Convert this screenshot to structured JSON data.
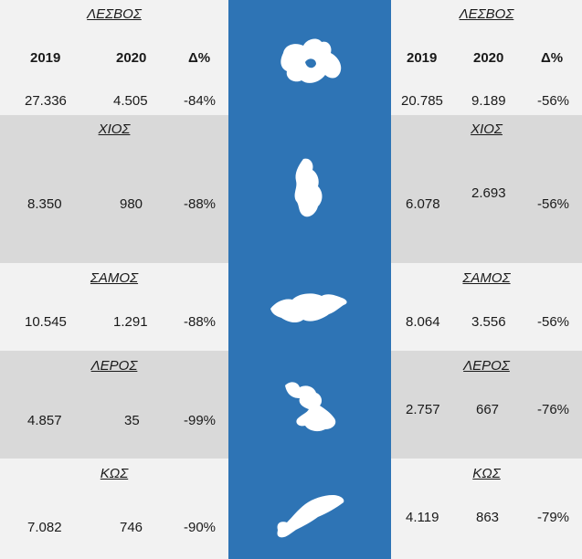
{
  "header": {
    "y2019": "2019",
    "y2020": "2020",
    "delta": "Δ%"
  },
  "left": [
    {
      "name": "ΛΕΣΒΟΣ",
      "v2019": "27.336",
      "v2020": "4.505",
      "delta": "-84%"
    },
    {
      "name": "ΧΙΟΣ",
      "v2019": "8.350",
      "v2020": "980",
      "delta": "-88%"
    },
    {
      "name": "ΣΑΜΟΣ",
      "v2019": "10.545",
      "v2020": "1.291",
      "delta": "-88%"
    },
    {
      "name": "ΛΕΡΟΣ",
      "v2019": "4.857",
      "v2020": "35",
      "delta": "-99%"
    },
    {
      "name": "ΚΩΣ",
      "v2019": "7.082",
      "v2020": "746",
      "delta": "-90%"
    }
  ],
  "right": [
    {
      "name": "ΛΕΣΒΟΣ",
      "v2019": "20.785",
      "v2020": "9.189",
      "delta": "-56%"
    },
    {
      "name": "ΧΙΟΣ",
      "v2019": "6.078",
      "v2020": "2.693",
      "delta": "-56%"
    },
    {
      "name": "ΣΑΜΟΣ",
      "v2019": "8.064",
      "v2020": "3.556",
      "delta": "-56%"
    },
    {
      "name": "ΛΕΡΟΣ",
      "v2019": "2.757",
      "v2020": "667",
      "delta": "-76%"
    },
    {
      "name": "ΚΩΣ",
      "v2019": "4.119",
      "v2020": "863",
      "delta": "-79%"
    }
  ],
  "colors": {
    "center_band": "#2e74b5",
    "light_row": "#f2f2f2",
    "dark_row": "#d9d9d9"
  },
  "islands": [
    "lesvos-icon",
    "chios-icon",
    "samos-icon",
    "leros-icon",
    "kos-icon"
  ]
}
